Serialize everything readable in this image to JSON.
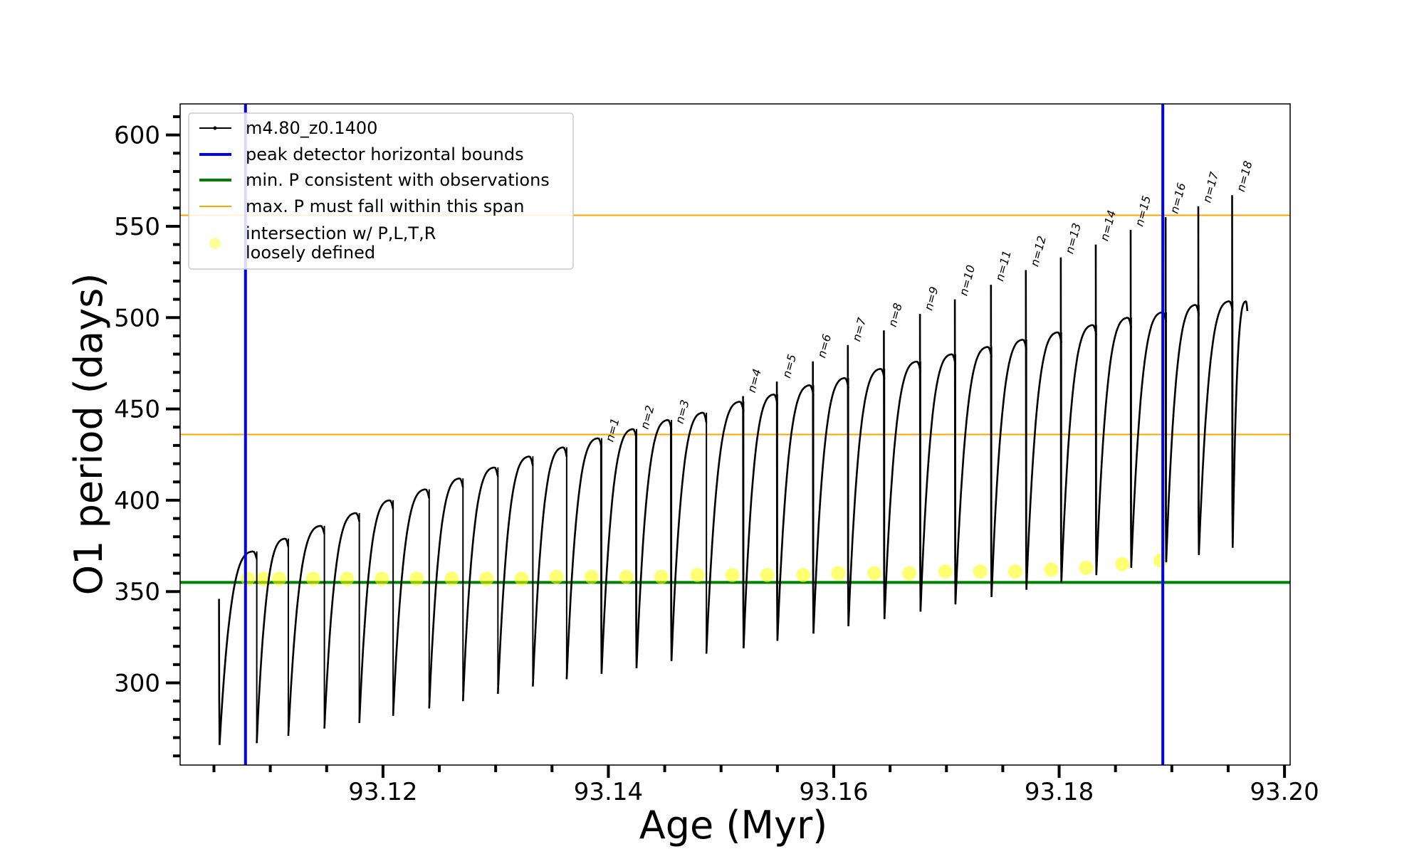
{
  "chart_data": {
    "type": "line",
    "title": "",
    "xlabel": "Age (Myr)",
    "ylabel": "O1 period (days)",
    "xlim": [
      93.102,
      93.2005
    ],
    "ylim": [
      255,
      617
    ],
    "x_ticks": [
      "93.12",
      "93.14",
      "93.16",
      "93.18",
      "93.20"
    ],
    "y_ticks": [
      "300",
      "350",
      "400",
      "450",
      "500",
      "550",
      "600"
    ],
    "grid": false,
    "legend_position": "upper-left",
    "legend": [
      {
        "label": "m4.80_z0.1400",
        "kind": "line-marker",
        "color": "#000000"
      },
      {
        "label": "peak detector horizontal bounds",
        "kind": "line",
        "color": "#0000ff"
      },
      {
        "label": "min. P consistent with observations",
        "kind": "line",
        "color": "#008000"
      },
      {
        "label": "max. P must fall within this span",
        "kind": "line",
        "color": "#ffa500"
      },
      {
        "label": "intersection w/ P,L,T,R\nloosely defined",
        "kind": "marker",
        "color": "#ffff00"
      }
    ],
    "series": [
      {
        "name": "m4.80_z0.1400",
        "color": "#000000",
        "cycles": [
          {
            "start": 93.1055,
            "end": 93.1088,
            "min": 266,
            "max": 372,
            "spike": 346
          },
          {
            "start": 93.1088,
            "end": 93.1116,
            "min": 267,
            "max": 379
          },
          {
            "start": 93.1116,
            "end": 93.1148,
            "min": 271,
            "max": 386
          },
          {
            "start": 93.1148,
            "end": 93.1179,
            "min": 275,
            "max": 393
          },
          {
            "start": 93.1179,
            "end": 93.1209,
            "min": 278,
            "max": 400
          },
          {
            "start": 93.1209,
            "end": 93.1241,
            "min": 282,
            "max": 406
          },
          {
            "start": 93.1241,
            "end": 93.1271,
            "min": 286,
            "max": 412
          },
          {
            "start": 93.1271,
            "end": 93.1302,
            "min": 290,
            "max": 418
          },
          {
            "start": 93.1302,
            "end": 93.1333,
            "min": 294,
            "max": 424
          },
          {
            "start": 93.1333,
            "end": 93.1363,
            "min": 298,
            "max": 429
          },
          {
            "start": 93.1363,
            "end": 93.1394,
            "min": 302,
            "max": 434
          },
          {
            "start": 93.1394,
            "end": 93.1425,
            "min": 305,
            "max": 439,
            "spike": 430
          },
          {
            "start": 93.1425,
            "end": 93.1456,
            "min": 308,
            "max": 444,
            "spike": 437
          },
          {
            "start": 93.1456,
            "end": 93.1487,
            "min": 312,
            "max": 448,
            "spike": 440
          },
          {
            "start": 93.1487,
            "end": 93.152,
            "min": 316,
            "max": 454
          },
          {
            "start": 93.152,
            "end": 93.155,
            "min": 319,
            "max": 458,
            "spike": 457
          },
          {
            "start": 93.155,
            "end": 93.1582,
            "min": 323,
            "max": 463,
            "spike": 465
          },
          {
            "start": 93.1582,
            "end": 93.1613,
            "min": 327,
            "max": 467,
            "spike": 476
          },
          {
            "start": 93.1613,
            "end": 93.1645,
            "min": 331,
            "max": 472,
            "spike": 485
          },
          {
            "start": 93.1645,
            "end": 93.1677,
            "min": 335,
            "max": 476,
            "spike": 493
          },
          {
            "start": 93.1677,
            "end": 93.1708,
            "min": 339,
            "max": 480,
            "spike": 502
          },
          {
            "start": 93.1708,
            "end": 93.174,
            "min": 343,
            "max": 484,
            "spike": 510
          },
          {
            "start": 93.174,
            "end": 93.1771,
            "min": 347,
            "max": 488,
            "spike": 518
          },
          {
            "start": 93.1771,
            "end": 93.1802,
            "min": 351,
            "max": 492,
            "spike": 526
          },
          {
            "start": 93.1802,
            "end": 93.1833,
            "min": 355,
            "max": 496,
            "spike": 533
          },
          {
            "start": 93.1833,
            "end": 93.1864,
            "min": 359,
            "max": 500,
            "spike": 540
          },
          {
            "start": 93.1864,
            "end": 93.1895,
            "min": 363,
            "max": 503,
            "spike": 548
          },
          {
            "start": 93.1895,
            "end": 93.1924,
            "min": 366,
            "max": 507,
            "spike": 555
          },
          {
            "start": 93.1924,
            "end": 93.1954,
            "min": 370,
            "max": 509,
            "spike": 561
          },
          {
            "start": 93.1954,
            "end": 93.1967,
            "min": 374,
            "max": 509,
            "spike": 567
          }
        ]
      }
    ],
    "vertical_lines": [
      {
        "name": "peak detector horizontal bounds",
        "x": 93.1078,
        "color": "#0000ff"
      },
      {
        "name": "peak detector horizontal bounds",
        "x": 93.1892,
        "color": "#0000ff"
      }
    ],
    "horizontal_lines": [
      {
        "name": "min. P consistent with observations",
        "y": 355,
        "color": "#008000"
      },
      {
        "name": "max. P must fall within this span",
        "y": 556,
        "color": "#ffa500"
      },
      {
        "name": "max. P must fall within this span",
        "y": 436,
        "color": "#ffa500"
      }
    ],
    "intersections": {
      "name": "intersection w/ P,L,T,R\nloosely defined",
      "color": "#ffff00",
      "points": [
        [
          93.108,
          357
        ],
        [
          93.1094,
          357
        ],
        [
          93.1108,
          357
        ],
        [
          93.1138,
          357
        ],
        [
          93.1168,
          357
        ],
        [
          93.1199,
          357
        ],
        [
          93.123,
          357
        ],
        [
          93.1261,
          357
        ],
        [
          93.1292,
          357
        ],
        [
          93.1323,
          357
        ],
        [
          93.1354,
          358
        ],
        [
          93.1385,
          358
        ],
        [
          93.1416,
          358
        ],
        [
          93.1447,
          358
        ],
        [
          93.1479,
          359
        ],
        [
          93.151,
          359
        ],
        [
          93.1541,
          359
        ],
        [
          93.1573,
          359
        ],
        [
          93.1604,
          360
        ],
        [
          93.1636,
          360
        ],
        [
          93.1667,
          360
        ],
        [
          93.1699,
          361
        ],
        [
          93.173,
          361
        ],
        [
          93.1761,
          361
        ],
        [
          93.1793,
          362
        ],
        [
          93.1824,
          363
        ],
        [
          93.1856,
          365
        ],
        [
          93.189,
          367
        ]
      ]
    },
    "annotations": [
      {
        "text": "n=1",
        "x": 93.1401,
        "y": 430
      },
      {
        "text": "n=2",
        "x": 93.1432,
        "y": 437
      },
      {
        "text": "n=3",
        "x": 93.1463,
        "y": 440
      },
      {
        "text": "n=4",
        "x": 93.1527,
        "y": 457
      },
      {
        "text": "n=5",
        "x": 93.1558,
        "y": 465
      },
      {
        "text": "n=6",
        "x": 93.1589,
        "y": 476
      },
      {
        "text": "n=7",
        "x": 93.162,
        "y": 485
      },
      {
        "text": "n=8",
        "x": 93.1652,
        "y": 493
      },
      {
        "text": "n=9",
        "x": 93.1684,
        "y": 502
      },
      {
        "text": "n=10",
        "x": 93.1715,
        "y": 510
      },
      {
        "text": "n=11",
        "x": 93.1747,
        "y": 518
      },
      {
        "text": "n=12",
        "x": 93.1778,
        "y": 526
      },
      {
        "text": "n=13",
        "x": 93.1809,
        "y": 533
      },
      {
        "text": "n=14",
        "x": 93.184,
        "y": 540
      },
      {
        "text": "n=15",
        "x": 93.1871,
        "y": 548
      },
      {
        "text": "n=16",
        "x": 93.1902,
        "y": 555
      },
      {
        "text": "n=17",
        "x": 93.1931,
        "y": 561
      },
      {
        "text": "n=18",
        "x": 93.1961,
        "y": 567
      }
    ]
  }
}
